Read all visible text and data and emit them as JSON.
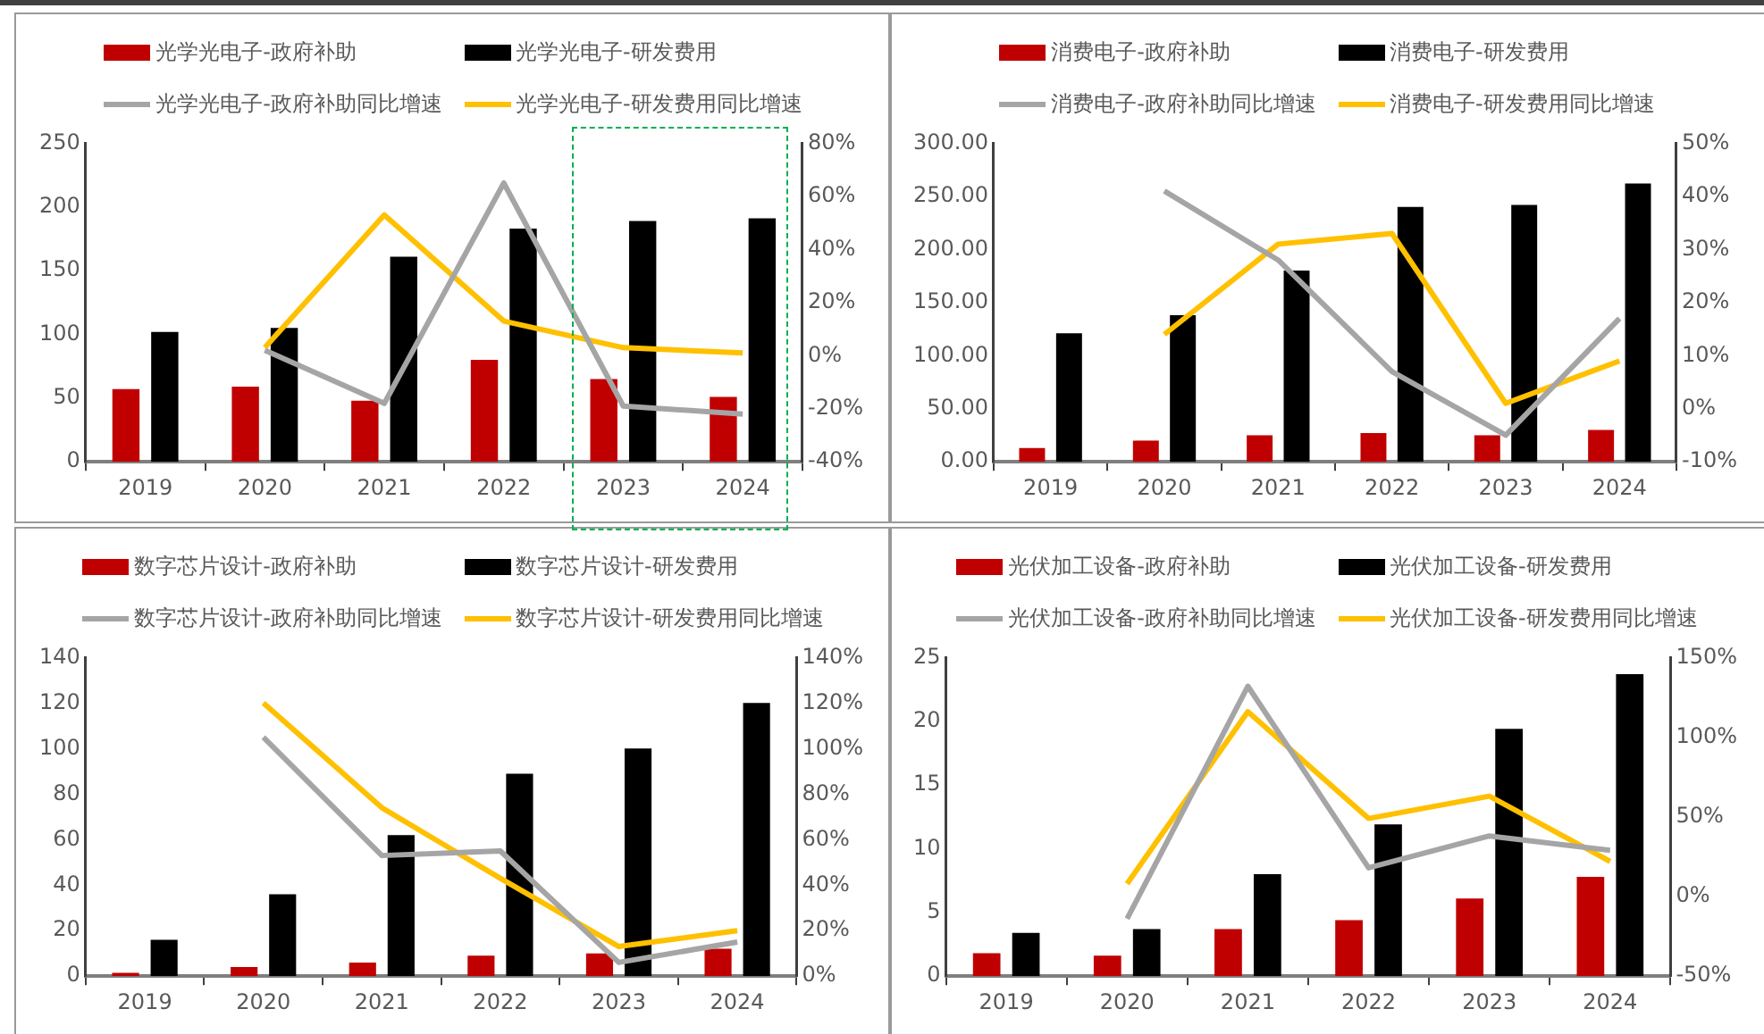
{
  "chart_data": [
    {
      "type": "bar",
      "categories": [
        "2019",
        "2020",
        "2021",
        "2022",
        "2023",
        "2024"
      ],
      "legend": "top",
      "grid": false,
      "marker": "none",
      "ylim": [
        0,
        250
      ],
      "yticks": [
        0,
        50,
        100,
        150,
        200,
        250
      ],
      "y2lim": [
        -40,
        80
      ],
      "y2ticks": [
        {
          "value": -40,
          "label": "-40%"
        },
        {
          "value": -20,
          "label": "-20%"
        },
        {
          "value": 0,
          "label": "0%"
        },
        {
          "value": 20,
          "label": "20%"
        },
        {
          "value": 40,
          "label": "40%"
        },
        {
          "value": 60,
          "label": "60%"
        },
        {
          "value": 80,
          "label": "80%"
        }
      ],
      "series": [
        {
          "name": "光学光电子-政府补助",
          "color": "#c00000",
          "values": [
            57,
            59,
            48,
            80,
            65,
            51
          ]
        },
        {
          "name": "光学光电子-研发费用",
          "color": "#000000",
          "values": [
            102,
            105,
            161,
            183,
            189,
            191
          ]
        },
        {
          "name": "光学光电子-政府补助同比增速",
          "type": "line",
          "axis": "y2",
          "color": "#a5a5a5",
          "values": [
            null,
            2,
            -18,
            65,
            -19,
            -22
          ]
        },
        {
          "name": "光学光电子-研发费用同比增速",
          "type": "line",
          "axis": "y2",
          "color": "#ffc000",
          "values": [
            null,
            3,
            53,
            13,
            3,
            1
          ]
        }
      ]
    },
    {
      "type": "bar",
      "categories": [
        "2019",
        "2020",
        "2021",
        "2022",
        "2023",
        "2024"
      ],
      "legend": "top",
      "grid": false,
      "marker": "none",
      "ylim": [
        0,
        300
      ],
      "yticks": [
        {
          "value": 0,
          "label": "0.00"
        },
        {
          "value": 50,
          "label": "50.00"
        },
        {
          "value": 100,
          "label": "100.00"
        },
        {
          "value": 150,
          "label": "150.00"
        },
        {
          "value": 200,
          "label": "200.00"
        },
        {
          "value": 250,
          "label": "250.00"
        },
        {
          "value": 300,
          "label": "300.00"
        }
      ],
      "y2lim": [
        -10,
        50
      ],
      "y2ticks": [
        {
          "value": -10,
          "label": "-10%"
        },
        {
          "value": 0,
          "label": "0%"
        },
        {
          "value": 10,
          "label": "10%"
        },
        {
          "value": 20,
          "label": "20%"
        },
        {
          "value": 30,
          "label": "30%"
        },
        {
          "value": 40,
          "label": "40%"
        },
        {
          "value": 50,
          "label": "50%"
        }
      ],
      "series": [
        {
          "name": "消费电子-政府补助",
          "color": "#c00000",
          "values": [
            13,
            20,
            25,
            27,
            25,
            30
          ]
        },
        {
          "name": "消费电子-研发费用",
          "color": "#000000",
          "values": [
            121,
            138,
            180,
            240,
            242,
            262
          ]
        },
        {
          "name": "消费电子-政府补助同比增速",
          "type": "line",
          "axis": "y2",
          "color": "#a5a5a5",
          "values": [
            null,
            41,
            28,
            7,
            -5,
            17
          ]
        },
        {
          "name": "消费电子-研发费用同比增速",
          "type": "line",
          "axis": "y2",
          "color": "#ffc000",
          "values": [
            null,
            14,
            31,
            33,
            1,
            9
          ]
        }
      ]
    },
    {
      "type": "bar",
      "categories": [
        "2019",
        "2020",
        "2021",
        "2022",
        "2023",
        "2024"
      ],
      "legend": "top",
      "grid": false,
      "marker": "none",
      "ylim": [
        0,
        140
      ],
      "yticks": [
        0,
        20,
        40,
        60,
        80,
        100,
        120,
        140
      ],
      "y2lim": [
        0,
        140
      ],
      "y2ticks": [
        {
          "value": 0,
          "label": "0%"
        },
        {
          "value": 20,
          "label": "20%"
        },
        {
          "value": 40,
          "label": "40%"
        },
        {
          "value": 60,
          "label": "60%"
        },
        {
          "value": 80,
          "label": "80%"
        },
        {
          "value": 100,
          "label": "100%"
        },
        {
          "value": 120,
          "label": "120%"
        },
        {
          "value": 140,
          "label": "140%"
        }
      ],
      "series": [
        {
          "name": "数字芯片设计-政府补助",
          "color": "#c00000",
          "values": [
            1.5,
            4,
            6,
            9,
            10,
            12
          ]
        },
        {
          "name": "数字芯片设计-研发费用",
          "color": "#000000",
          "values": [
            16,
            36,
            62,
            89,
            100,
            120
          ]
        },
        {
          "name": "数字芯片设计-政府补助同比增速",
          "type": "line",
          "axis": "y2",
          "color": "#a5a5a5",
          "values": [
            null,
            105,
            53,
            55,
            6,
            15
          ]
        },
        {
          "name": "数字芯片设计-研发费用同比增速",
          "type": "line",
          "axis": "y2",
          "color": "#ffc000",
          "values": [
            null,
            120,
            74,
            43,
            13,
            20
          ]
        }
      ]
    },
    {
      "type": "bar",
      "categories": [
        "2019",
        "2020",
        "2021",
        "2022",
        "2023",
        "2024"
      ],
      "legend": "top",
      "grid": false,
      "marker": "none",
      "ylim": [
        0,
        25
      ],
      "yticks": [
        0,
        5,
        10,
        15,
        20,
        25
      ],
      "y2lim": [
        -50,
        150
      ],
      "y2ticks": [
        {
          "value": -50,
          "label": "-50%"
        },
        {
          "value": 0,
          "label": "0%"
        },
        {
          "value": 50,
          "label": "50%"
        },
        {
          "value": 100,
          "label": "100%"
        },
        {
          "value": 150,
          "label": "150%"
        }
      ],
      "series": [
        {
          "name": "光伏加工设备-政府补助",
          "color": "#c00000",
          "values": [
            1.8,
            1.6,
            3.7,
            4.4,
            6.1,
            7.8
          ]
        },
        {
          "name": "光伏加工设备-研发费用",
          "color": "#000000",
          "values": [
            3.4,
            3.7,
            8,
            11.9,
            19.4,
            23.7
          ]
        },
        {
          "name": "光伏加工设备-政府补助同比增速",
          "type": "line",
          "axis": "y2",
          "color": "#a5a5a5",
          "values": [
            null,
            -14,
            132,
            18,
            38,
            29
          ]
        },
        {
          "name": "光伏加工设备-研发费用同比增速",
          "type": "line",
          "axis": "y2",
          "color": "#ffc000",
          "values": [
            null,
            8,
            116,
            49,
            63,
            22
          ]
        }
      ]
    }
  ]
}
